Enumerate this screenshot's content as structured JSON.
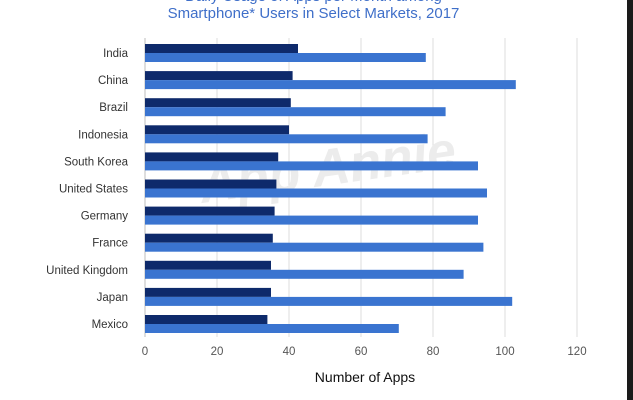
{
  "title": "Smartphone* Users in Select Markets, 2017",
  "chart_data": {
    "type": "bar",
    "orientation": "horizontal",
    "title": "Smartphone* Users in Select Markets, 2017",
    "xlabel": "Number of Apps",
    "ylabel": "",
    "xlim": [
      0,
      120
    ],
    "xticks": [
      0,
      20,
      40,
      60,
      80,
      100,
      120
    ],
    "grid": "vertical",
    "legend": "none",
    "categories": [
      "India",
      "China",
      "Brazil",
      "Indonesia",
      "South Korea",
      "United States",
      "Germany",
      "France",
      "United Kingdom",
      "Japan",
      "Mexico"
    ],
    "series": [
      {
        "color": "#0e2a6b",
        "values": [
          42.5,
          41,
          40.5,
          40,
          37,
          36.5,
          36,
          35.5,
          35,
          35,
          34
        ]
      },
      {
        "color": "#3a74d0",
        "values": [
          78,
          103,
          83.5,
          78.5,
          92.5,
          95,
          92.5,
          94,
          88.5,
          102,
          70.5
        ]
      }
    ]
  },
  "watermark": "App Annie"
}
